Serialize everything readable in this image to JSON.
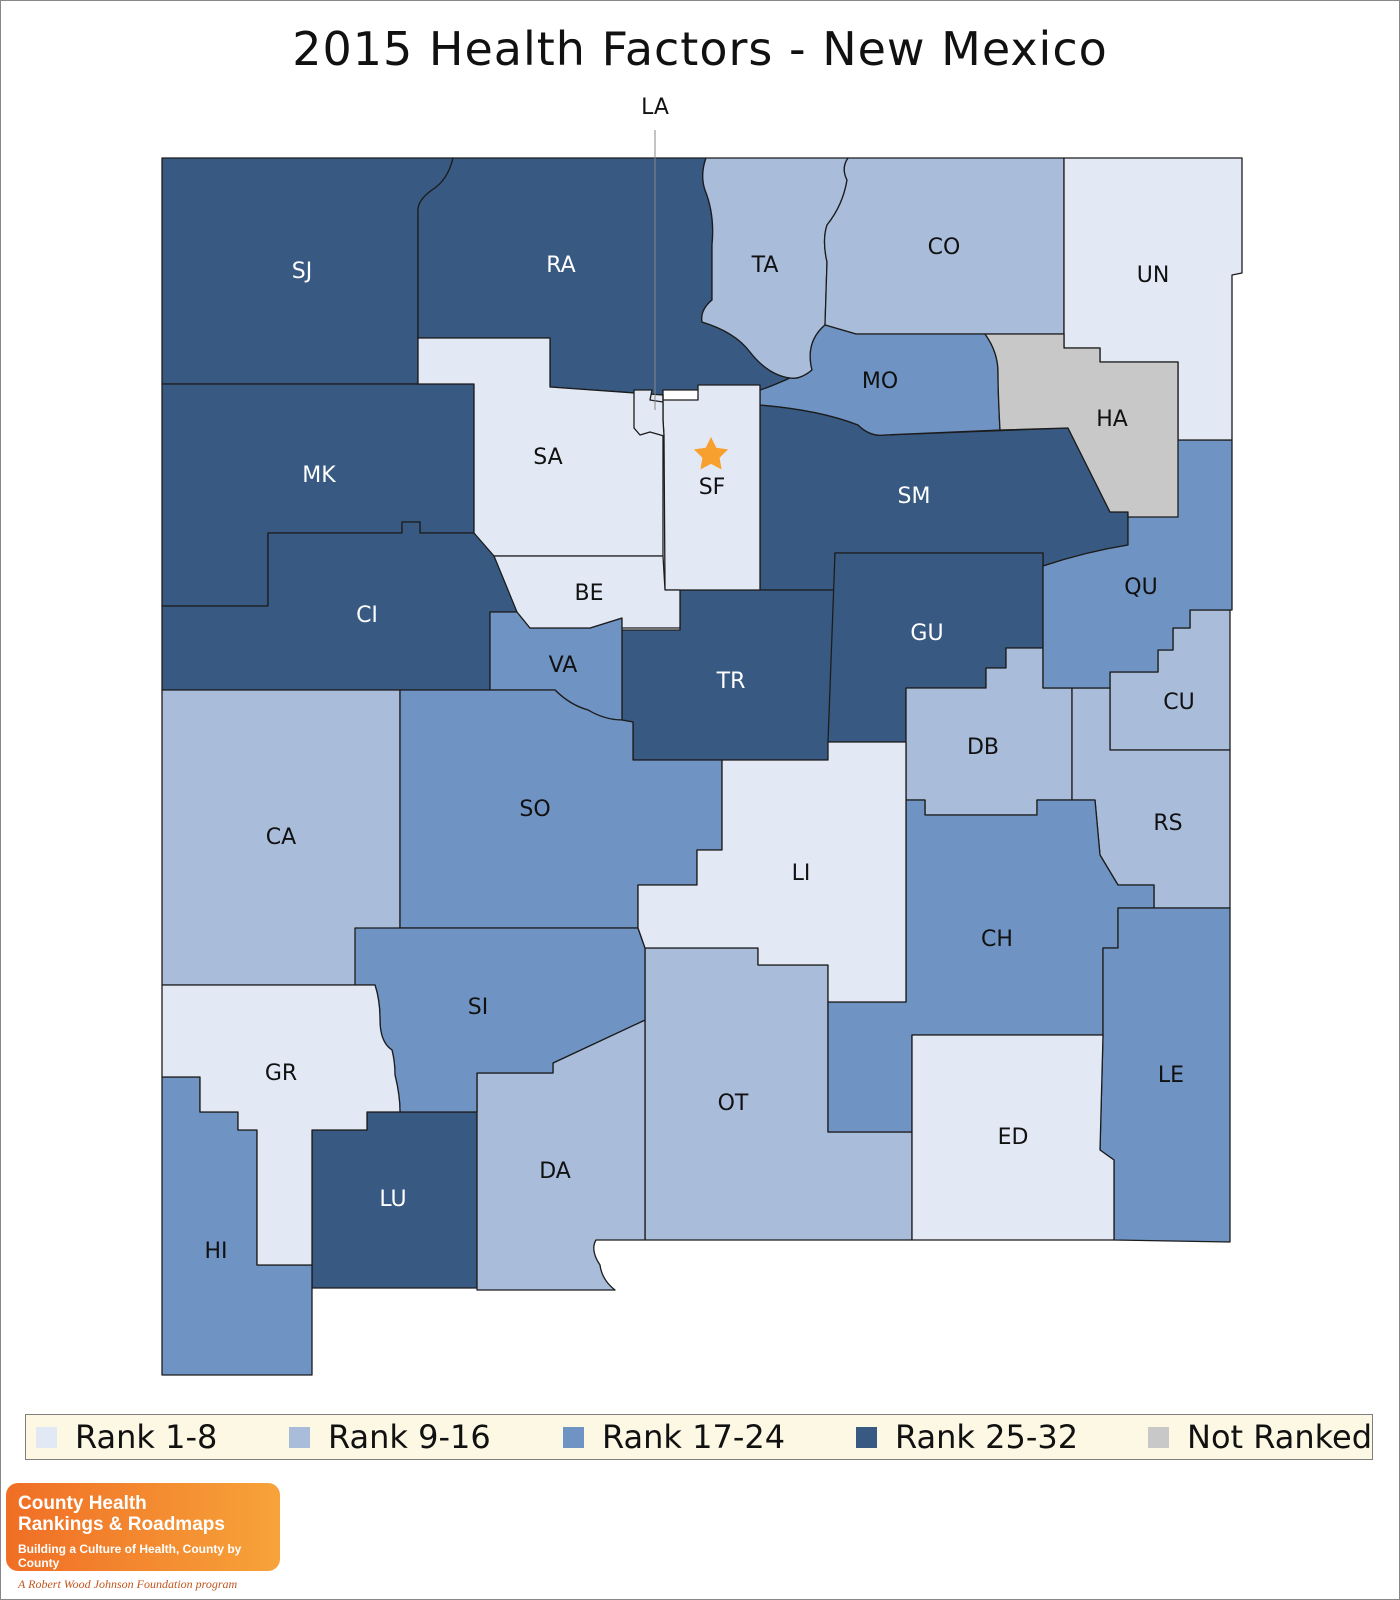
{
  "title": "2015 Health Factors - New Mexico",
  "colors": {
    "rank_1_8": "#e3e9f4",
    "rank_9_16": "#a9bcda",
    "rank_17_24": "#6f93c2",
    "rank_25_32": "#385a82",
    "not_ranked": "#c8c8c8",
    "star": "#f7a030"
  },
  "legend": [
    {
      "label": "Rank 1-8",
      "color": "#e3e9f4"
    },
    {
      "label": "Rank 9-16",
      "color": "#a9bcda"
    },
    {
      "label": "Rank 17-24",
      "color": "#6f93c2"
    },
    {
      "label": "Rank 25-32",
      "color": "#385a82"
    },
    {
      "label": "Not Ranked",
      "color": "#c8c8c8"
    }
  ],
  "counties": {
    "SJ": "SJ",
    "RA": "RA",
    "TA": "TA",
    "CO": "CO",
    "UN": "UN",
    "MK": "MK",
    "SA": "SA",
    "LA": "LA",
    "SF": "SF",
    "MO": "MO",
    "HA": "HA",
    "SM": "SM",
    "CI": "CI",
    "BE": "BE",
    "VA": "VA",
    "TR": "TR",
    "GU": "GU",
    "QU": "QU",
    "CU": "CU",
    "DB": "DB",
    "RS": "RS",
    "CA": "CA",
    "SO": "SO",
    "LI": "LI",
    "CH": "CH",
    "SI": "SI",
    "GR": "GR",
    "OT": "OT",
    "LE": "LE",
    "ED": "ED",
    "DA": "DA",
    "LU": "LU",
    "HI": "HI"
  },
  "capital_icon": "star-icon",
  "logo": {
    "line1": "County Health",
    "line2": "Rankings & Roadmaps",
    "tagline": "Building a Culture of Health, County by County"
  },
  "attribution": "A Robert Wood Johnson Foundation program"
}
